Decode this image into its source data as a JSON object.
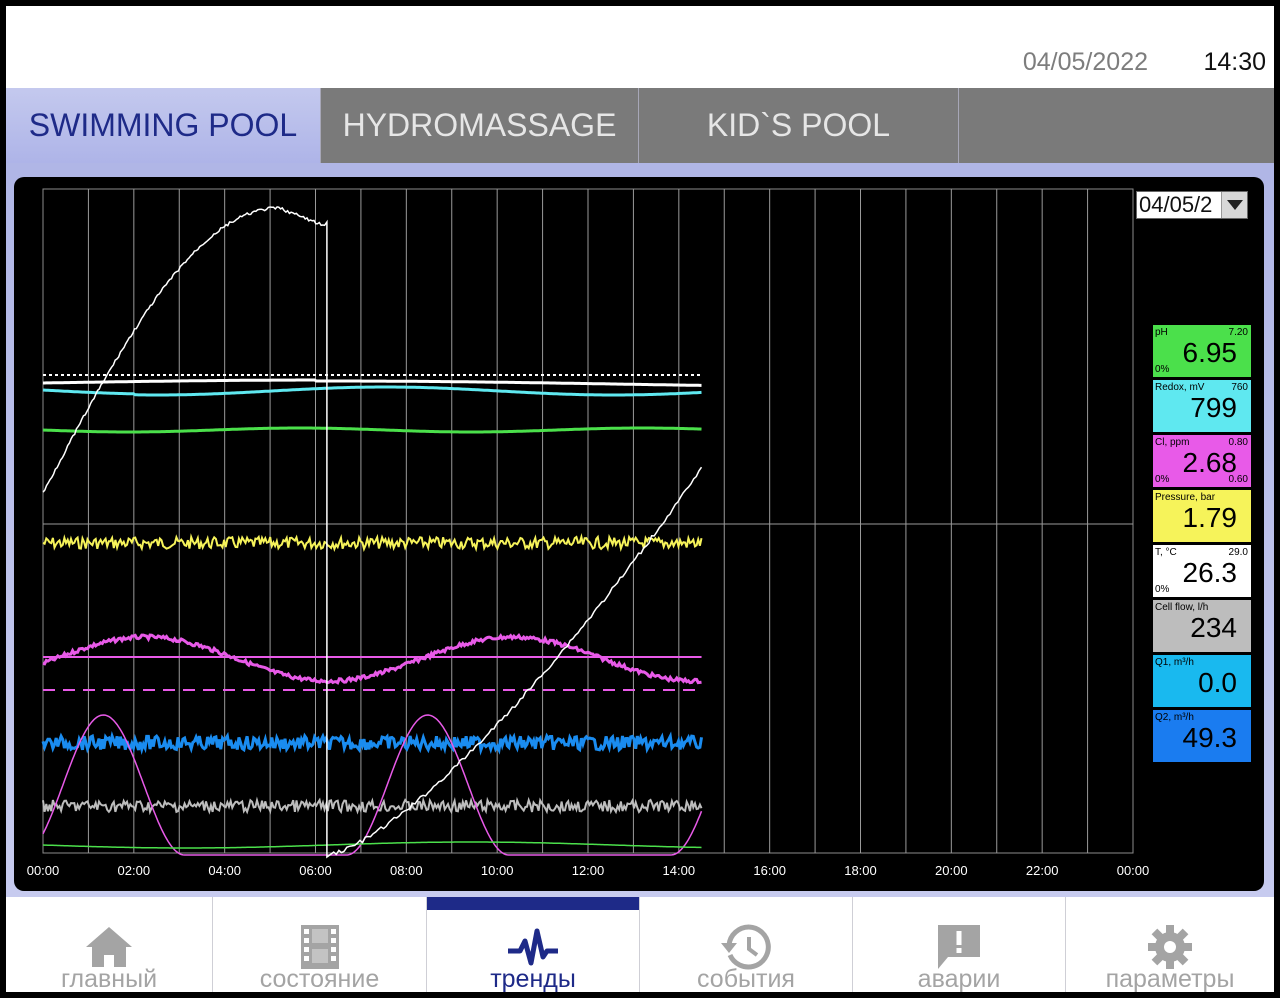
{
  "header": {
    "date": "04/05/2022",
    "time": "14:30"
  },
  "tabs": [
    {
      "label": "SWIMMING POOL",
      "active": true
    },
    {
      "label": "HYDROMASSAGE",
      "active": false
    },
    {
      "label": "KID`S POOL",
      "active": false
    }
  ],
  "date_select": {
    "value": "04/05/2"
  },
  "x_axis_ticks": [
    "00:00",
    "02:00",
    "04:00",
    "06:00",
    "08:00",
    "10:00",
    "12:00",
    "14:00",
    "16:00",
    "18:00",
    "20:00",
    "22:00",
    "00:00"
  ],
  "tiles": [
    {
      "name": "pH",
      "max": "7.20",
      "min": "0%",
      "sub": "",
      "value": "6.95",
      "color": "#4be04b"
    },
    {
      "name": "Redox, mV",
      "max": "760",
      "min": "",
      "sub": "",
      "value": "799",
      "color": "#5fe8f0"
    },
    {
      "name": "Cl, ppm",
      "max": "0.80",
      "min": "0%",
      "sub": "0.60",
      "value": "2.68",
      "color": "#e85ae8"
    },
    {
      "name": "Pressure, bar",
      "max": "",
      "min": "",
      "sub": "",
      "value": "1.79",
      "color": "#f6f35a"
    },
    {
      "name": "T, °C",
      "max": "29.0",
      "min": "0%",
      "sub": "",
      "value": "26.3",
      "color": "#ffffff"
    },
    {
      "name": "Cell flow, l/h",
      "max": "",
      "min": "",
      "sub": "",
      "value": "234",
      "color": "#bdbdbd"
    },
    {
      "name": "Q1, m³/h",
      "max": "",
      "min": "",
      "sub": "",
      "value": "0.0",
      "color": "#19b9ef"
    },
    {
      "name": "Q2, m³/h",
      "max": "",
      "min": "",
      "sub": "",
      "value": "49.3",
      "color": "#1a7cf0"
    }
  ],
  "nav": [
    {
      "label": "главный",
      "icon": "home-icon",
      "active": false
    },
    {
      "label": "состояние",
      "icon": "film-icon",
      "active": false
    },
    {
      "label": "тренды",
      "icon": "pulse-icon",
      "active": true
    },
    {
      "label": "события",
      "icon": "history-icon",
      "active": false
    },
    {
      "label": "аварии",
      "icon": "alert-message-icon",
      "active": false
    },
    {
      "label": "параметры",
      "icon": "gear-icon",
      "active": false
    }
  ],
  "colors": {
    "brand": "#1e2a88",
    "tab_inactive": "#7a7a7a",
    "chart_background": "#000000",
    "grid": "#a0a0a0"
  },
  "chart_data": {
    "type": "line",
    "x_range": [
      "00:00",
      "00:00"
    ],
    "x_ticks": [
      "00:00",
      "02:00",
      "04:00",
      "06:00",
      "08:00",
      "10:00",
      "12:00",
      "14:00",
      "16:00",
      "18:00",
      "20:00",
      "22:00",
      "00:00"
    ],
    "grid": true,
    "data_end": "14:30",
    "series": [
      {
        "color": "#ffffff"
      },
      {
        "color": "#5fe8f0"
      },
      {
        "color": "#4be04b"
      },
      {
        "color": "#f6f35a"
      },
      {
        "color": "#e85ae8"
      },
      {
        "color": "#1a8cf0"
      },
      {
        "color": "#bdbdbd"
      },
      {
        "color": "#e85ae8"
      },
      {
        "color": "#4be04b"
      }
    ]
  }
}
